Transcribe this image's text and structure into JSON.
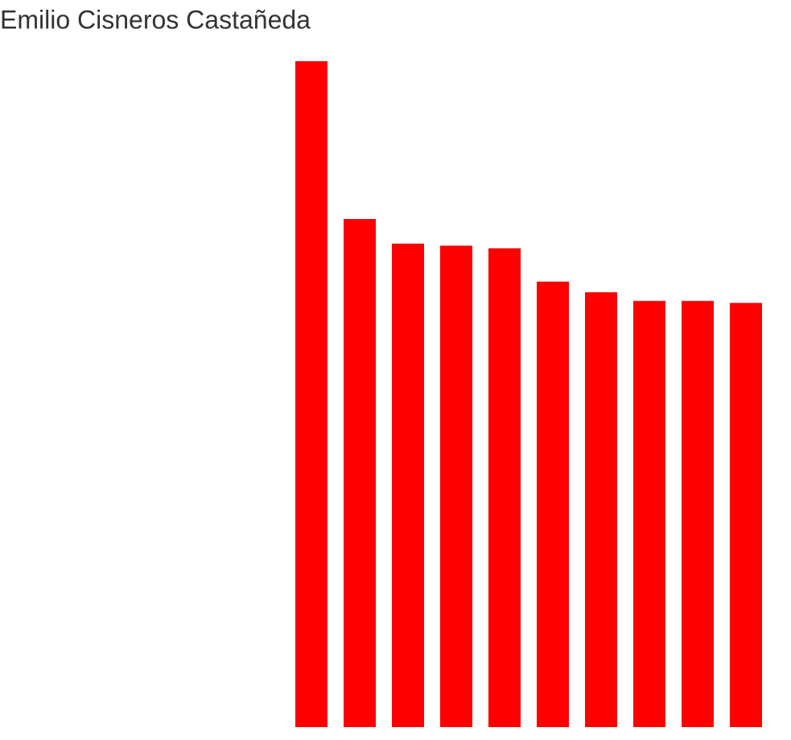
{
  "chart_data": {
    "type": "bar",
    "title": "Emilio Cisneros Castañeda",
    "values": [
      100,
      76.3,
      72.6,
      72.3,
      71.9,
      66.9,
      65.3,
      64.0,
      64.0,
      63.7
    ],
    "color": "#ff0000",
    "ylim": [
      0,
      100
    ]
  }
}
